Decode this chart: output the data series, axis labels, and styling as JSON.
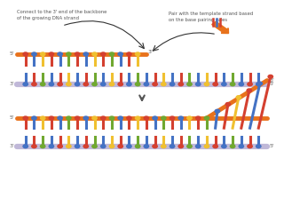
{
  "bg_color": "#ffffff",
  "annotation1": "Connect to the 3' end of the backbone\nof the growing DNA strand",
  "annotation2": "Pair with the template strand based\non the base pairing rules",
  "strand_colors": {
    "orange_backbone": "#E8721C",
    "lavender_backbone": "#C0B8D8",
    "red_base": "#D44030",
    "blue_base": "#4472C4",
    "yellow_base": "#F0C030",
    "green_base": "#70A830"
  },
  "base_sequence_top": [
    "red",
    "blue",
    "yellow",
    "red",
    "blue",
    "green",
    "red",
    "blue",
    "yellow",
    "red",
    "green",
    "blue",
    "red",
    "yellow",
    "red",
    "blue",
    "green",
    "red",
    "blue",
    "yellow",
    "red",
    "green",
    "blue",
    "red",
    "yellow",
    "red",
    "blue",
    "red",
    "green",
    "blue"
  ],
  "base_sequence_bottom": [
    "blue",
    "red",
    "green",
    "blue",
    "red",
    "yellow",
    "blue",
    "red",
    "green",
    "blue",
    "yellow",
    "red",
    "blue",
    "green",
    "blue",
    "red",
    "yellow",
    "blue",
    "red",
    "green",
    "blue",
    "yellow",
    "red",
    "blue",
    "green",
    "blue",
    "red",
    "blue",
    "yellow",
    "red"
  ]
}
